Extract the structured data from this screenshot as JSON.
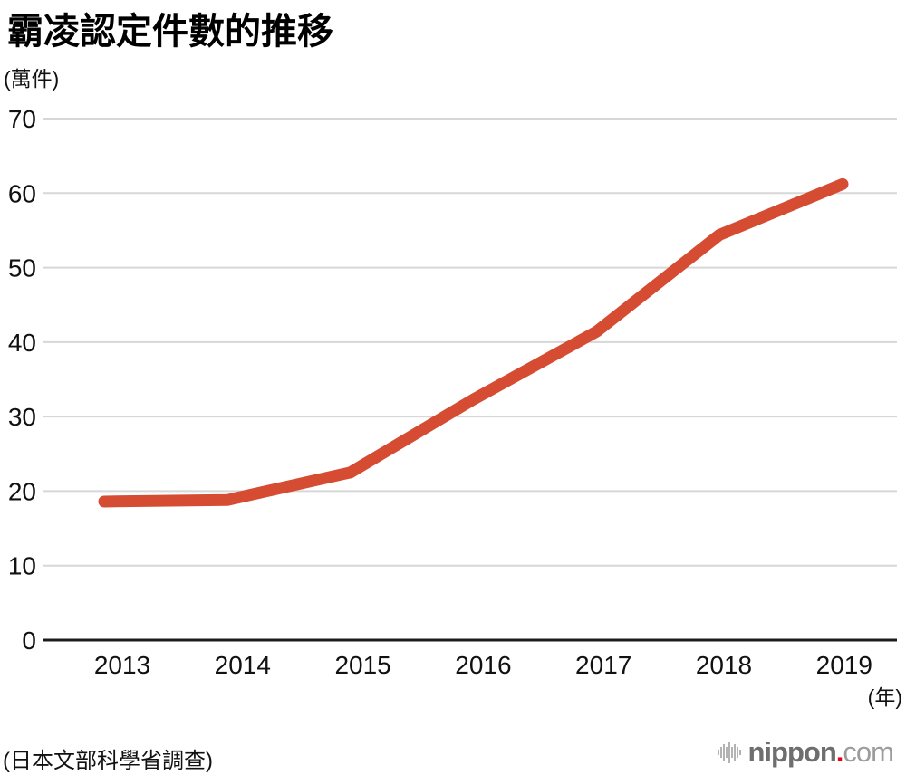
{
  "header": {
    "title": "霸凌認定件數的推移",
    "unit_label": "(萬件)"
  },
  "chart_data": {
    "type": "line",
    "title": "霸凌認定件數的推移",
    "categories": [
      "2013",
      "2014",
      "2015",
      "2016",
      "2017",
      "2018",
      "2019"
    ],
    "values": [
      18.6,
      18.8,
      22.5,
      32.3,
      41.4,
      54.4,
      61.2
    ],
    "series_name": "霸凌認定件數",
    "xlabel": "年",
    "x_axis_unit_label": "(年)",
    "ylabel": "萬件",
    "ylim": [
      0,
      70
    ],
    "ytick_step": 10,
    "grid": true,
    "legend_position": "none",
    "line_color": "#d54c32",
    "gridline_color": "#d7d7d7",
    "axis_color": "#1c1c1c"
  },
  "footer": {
    "source": "(日本文部科學省調查)",
    "logo": {
      "icon": "soundwave-bars-icon",
      "main": "nippon",
      "dot": ".",
      "suffix": "com",
      "dot_color": "#e60012"
    }
  }
}
